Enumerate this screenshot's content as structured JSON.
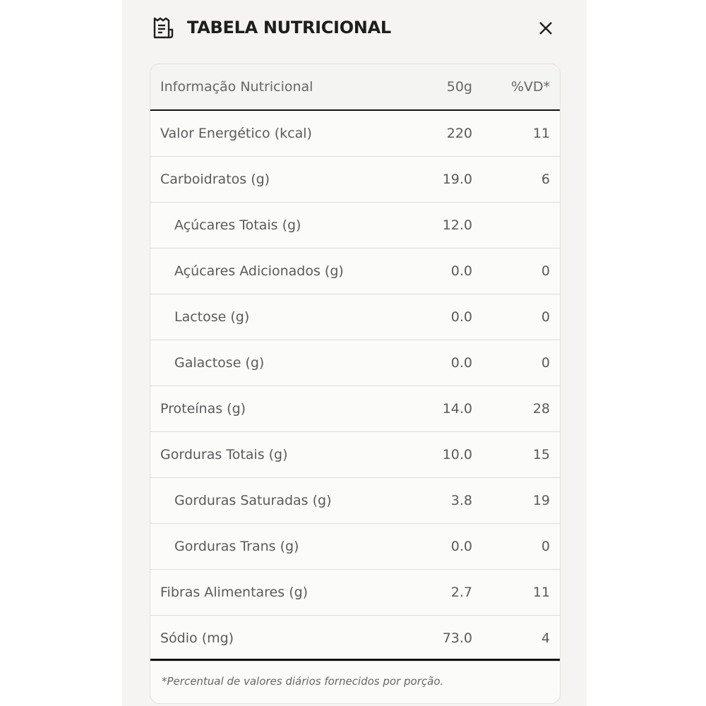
{
  "header": {
    "title": "TABELA NUTRICIONAL",
    "icon": "receipt-icon",
    "close_icon": "close-icon"
  },
  "table": {
    "columns": [
      "Informação Nutricional",
      "50g",
      "%VD*"
    ],
    "rows": [
      {
        "name": "Valor Energético (kcal)",
        "amount": "220",
        "vd": "11",
        "sub": false
      },
      {
        "name": "Carboidratos (g)",
        "amount": "19.0",
        "vd": "6",
        "sub": false
      },
      {
        "name": "Açúcares Totais (g)",
        "amount": "12.0",
        "vd": "",
        "sub": true
      },
      {
        "name": "Açúcares Adicionados (g)",
        "amount": "0.0",
        "vd": "0",
        "sub": true
      },
      {
        "name": "Lactose (g)",
        "amount": "0.0",
        "vd": "0",
        "sub": true
      },
      {
        "name": "Galactose (g)",
        "amount": "0.0",
        "vd": "0",
        "sub": true
      },
      {
        "name": "Proteínas (g)",
        "amount": "14.0",
        "vd": "28",
        "sub": false
      },
      {
        "name": "Gorduras Totais (g)",
        "amount": "10.0",
        "vd": "15",
        "sub": false
      },
      {
        "name": "Gorduras Saturadas (g)",
        "amount": "3.8",
        "vd": "19",
        "sub": true
      },
      {
        "name": "Gorduras Trans (g)",
        "amount": "0.0",
        "vd": "0",
        "sub": true
      },
      {
        "name": "Fibras Alimentares (g)",
        "amount": "2.7",
        "vd": "11",
        "sub": false
      },
      {
        "name": "Sódio (mg)",
        "amount": "73.0",
        "vd": "4",
        "sub": false
      }
    ],
    "footnote": "*Percentual de valores diários fornecidos por porção."
  }
}
